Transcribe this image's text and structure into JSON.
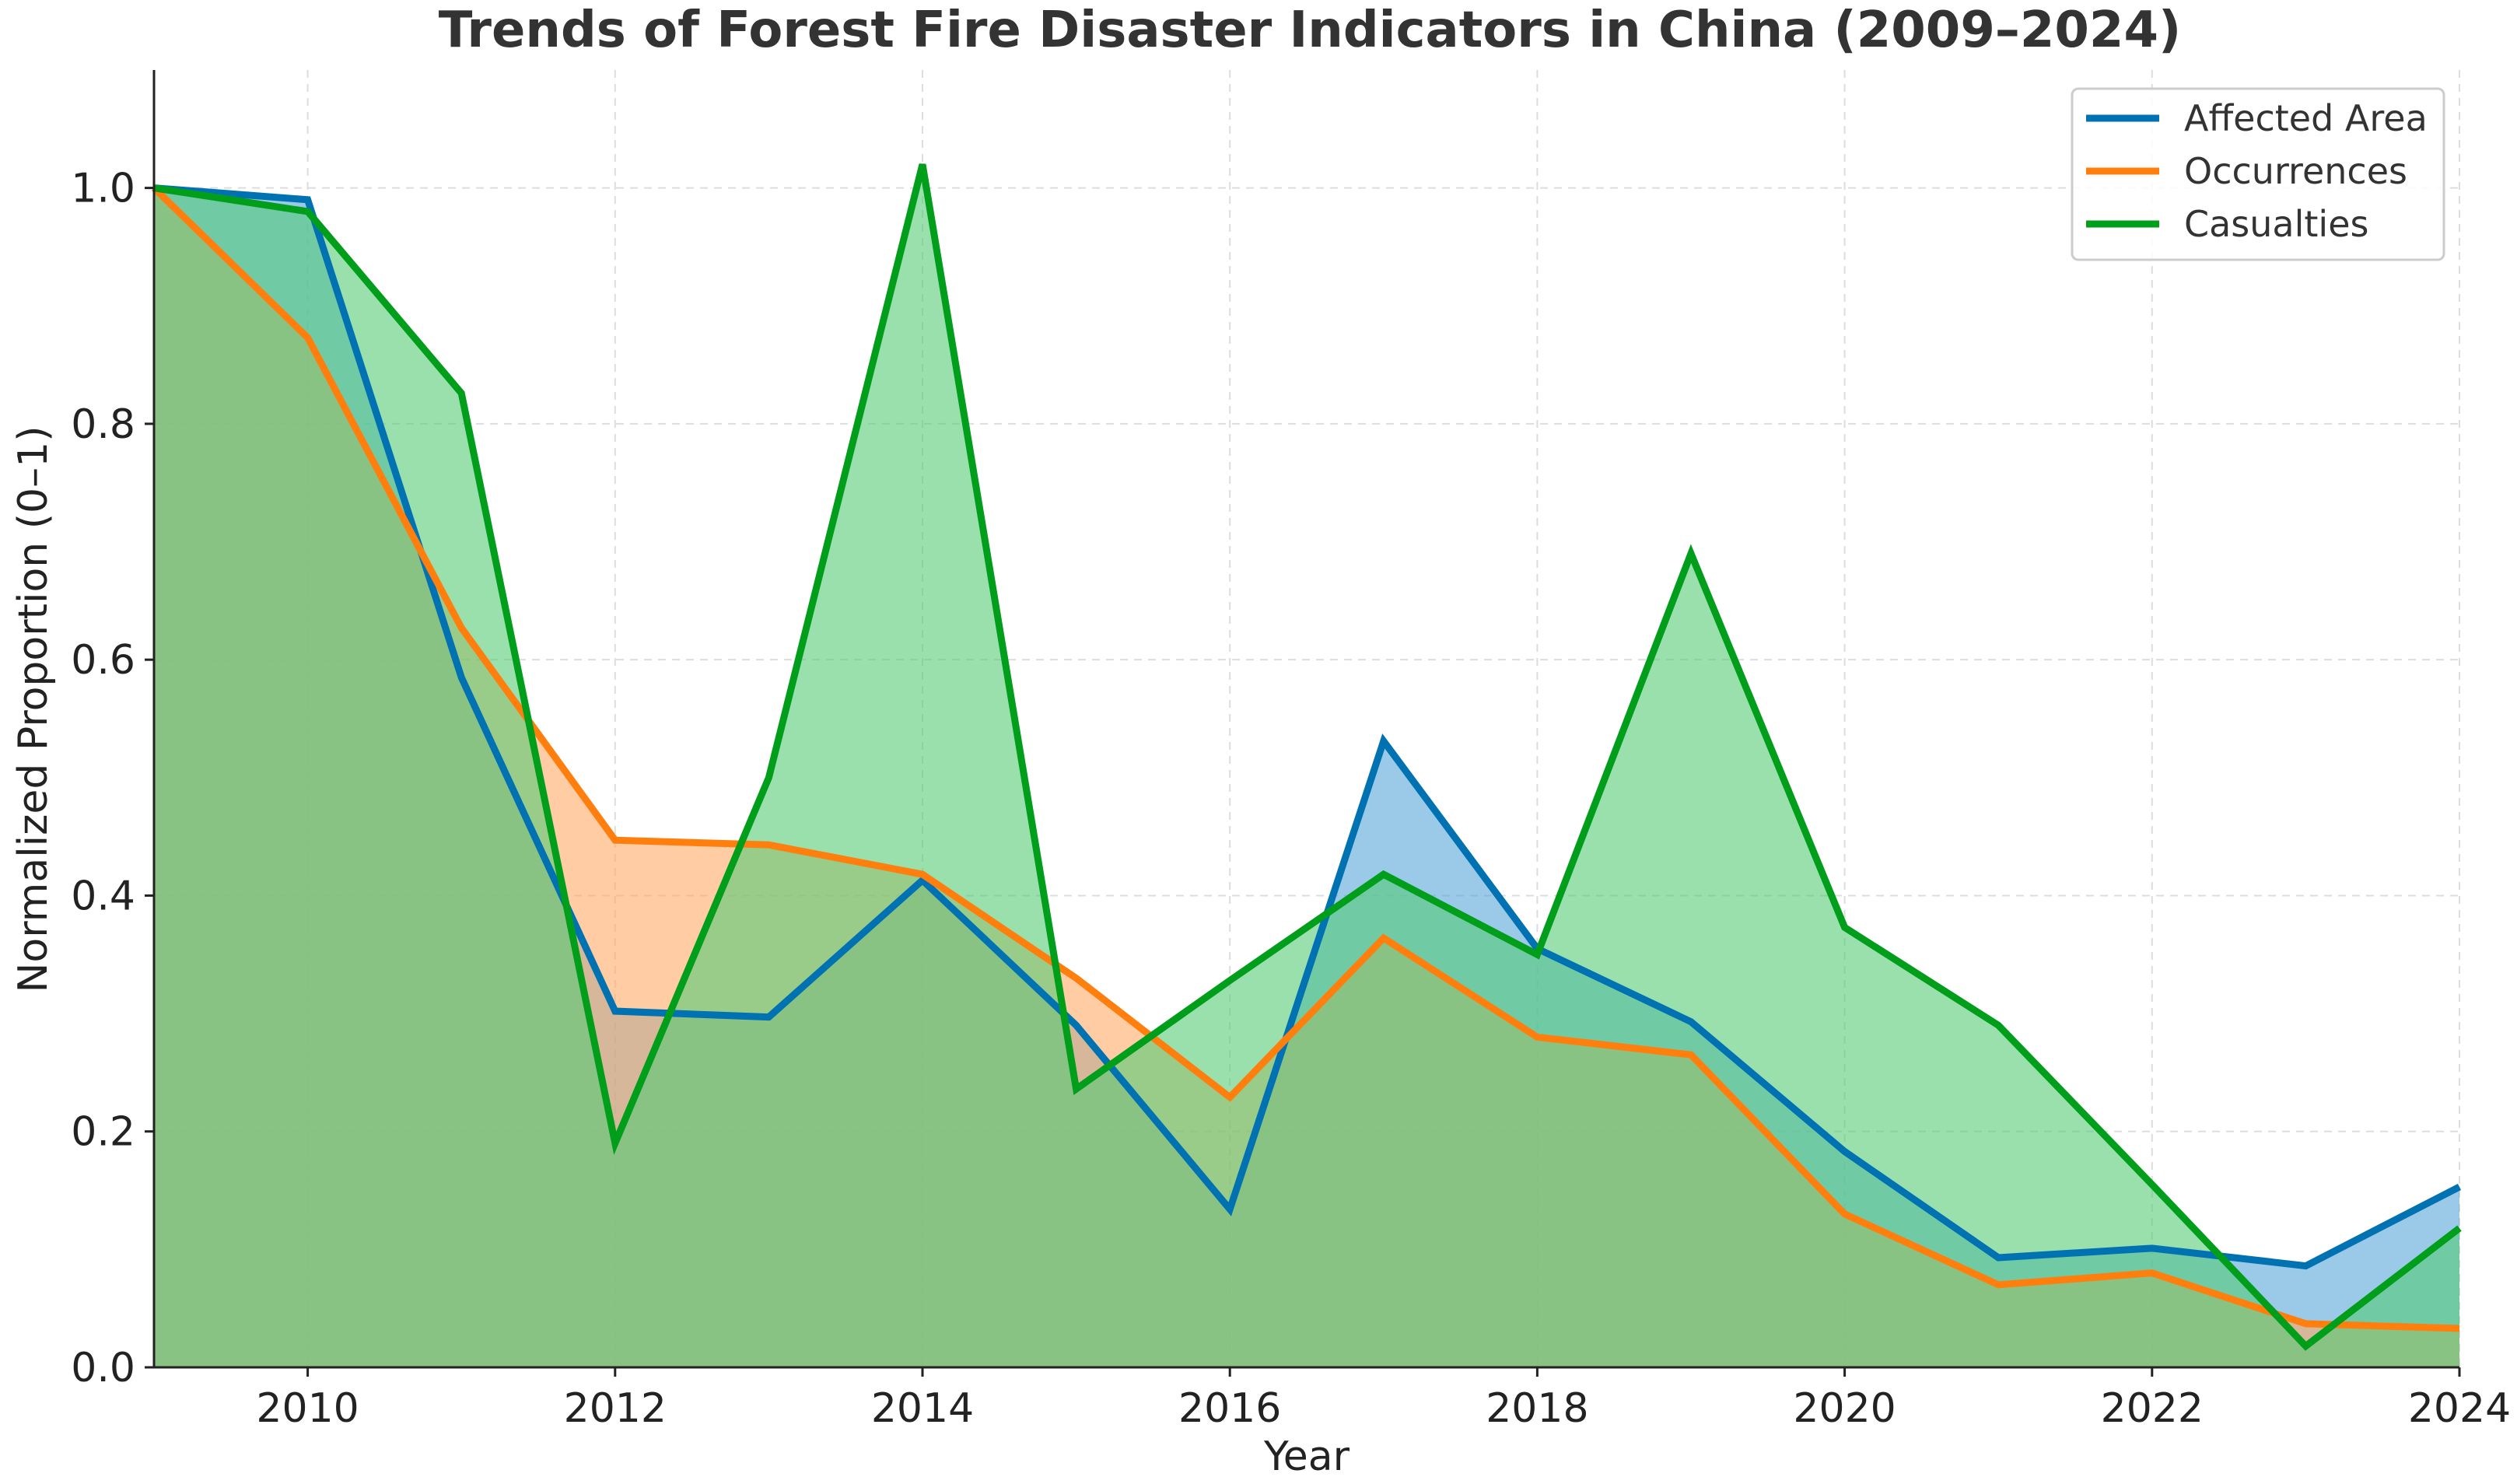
{
  "chart_data": {
    "type": "area",
    "title": "Trends of Forest Fire Disaster Indicators in China (2009–2024)",
    "xlabel": "Year",
    "ylabel": "Normalized Proportion (0–1)",
    "x": [
      2009,
      2010,
      2011,
      2012,
      2013,
      2014,
      2015,
      2016,
      2017,
      2018,
      2019,
      2020,
      2021,
      2022,
      2023,
      2024
    ],
    "xlim": [
      2009,
      2024
    ],
    "ylim": [
      0,
      1.1
    ],
    "xticks": [
      "2010",
      "2012",
      "2014",
      "2016",
      "2018",
      "2020",
      "2022",
      "2024"
    ],
    "yticks": [
      "0.0",
      "0.2",
      "0.4",
      "0.6",
      "0.8",
      "1.0"
    ],
    "grid": true,
    "legend_position": "top-right",
    "series": [
      {
        "name": "Affected Area",
        "color": "#0072B2",
        "fill": "#56A7D8",
        "values": [
          1.0,
          0.99,
          0.585,
          0.302,
          0.297,
          0.413,
          0.29,
          0.134,
          0.531,
          0.355,
          0.293,
          0.183,
          0.093,
          0.101,
          0.086,
          0.153
        ]
      },
      {
        "name": "Occurrences",
        "color": "#FF7F0E",
        "fill": "#FFAA66",
        "values": [
          1.0,
          0.873,
          0.627,
          0.447,
          0.443,
          0.418,
          0.33,
          0.229,
          0.364,
          0.28,
          0.265,
          0.13,
          0.07,
          0.08,
          0.037,
          0.033
        ]
      },
      {
        "name": "Casualties",
        "color": "#009E1A",
        "fill": "#55CC77",
        "values": [
          1.0,
          0.98,
          0.826,
          0.19,
          0.5,
          1.02,
          0.236,
          0.328,
          0.418,
          0.35,
          0.69,
          0.373,
          0.29,
          0.155,
          0.018,
          0.118
        ]
      }
    ]
  }
}
